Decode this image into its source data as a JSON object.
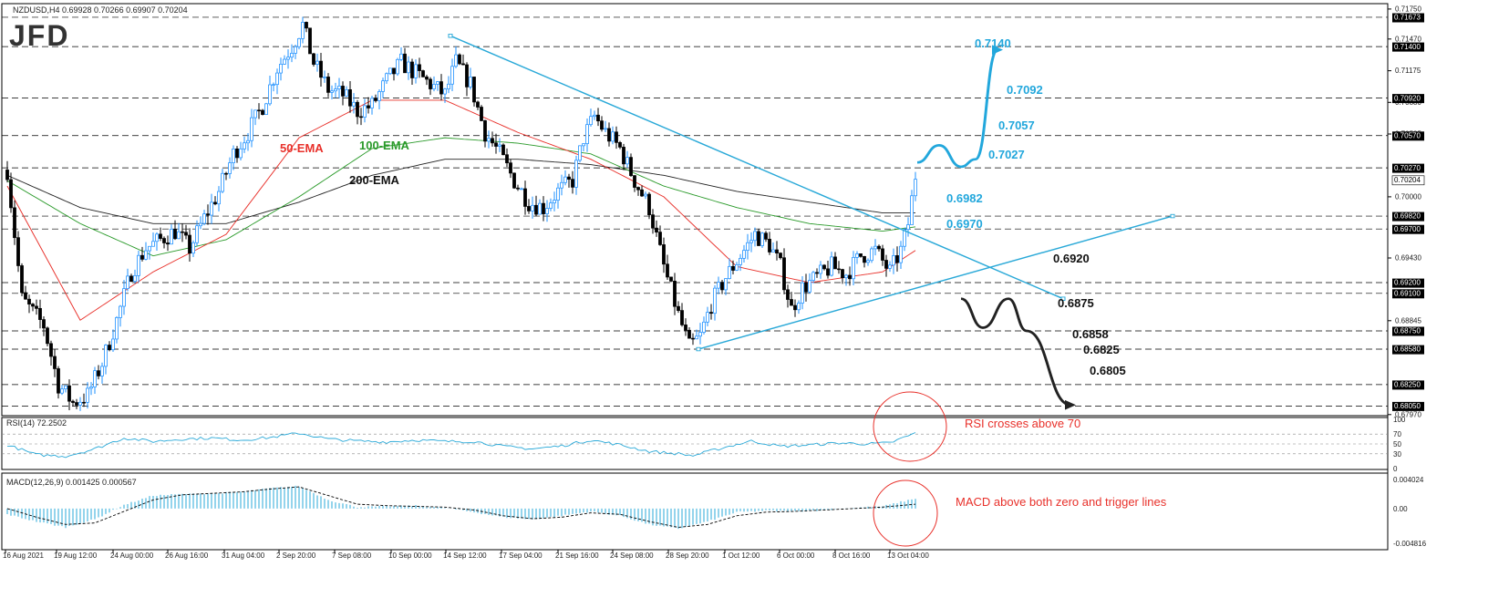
{
  "main": {
    "symbol_label": "NZDUSD,H4  0.69928 0.70266 0.69907 0.70204",
    "logo_text": "JFD",
    "ema_labels": {
      "ema50": "50-EMA",
      "ema100": "100-EMA",
      "ema200": "200-EMA"
    },
    "levels_dashed": [
      0.71673,
      0.714,
      0.7092,
      0.7057,
      0.7027,
      0.6982,
      0.697,
      0.692,
      0.691,
      0.6875,
      0.6858,
      0.6825,
      0.6805
    ],
    "axis_ticks": [
      "0.71750",
      "0.71470",
      "0.71175",
      "0.70880",
      "0.70585",
      "0.70000",
      "0.69430",
      "0.68845",
      "0.67970"
    ],
    "axis_badges": [
      "0.71673",
      "0.71400",
      "0.70920",
      "0.70570",
      "0.70270",
      "0.70204",
      "0.69820",
      "0.69700",
      "0.69200",
      "0.69100",
      "0.68750",
      "0.68580",
      "0.68250",
      "0.68050"
    ],
    "target_labels_up": [
      "0.7140",
      "0.7092",
      "0.7057",
      "0.7027",
      "0.6982",
      "0.6970"
    ],
    "target_labels_down": [
      "0.6920",
      "0.6875",
      "0.6858",
      "0.6825",
      "0.6805"
    ],
    "colors": {
      "up_candle": "#1e90ff",
      "down_candle": "#000000",
      "ema50": "#e8302a",
      "ema100": "#2a9a2a",
      "ema200": "#222222",
      "trendline": "#2aa9d8",
      "annotation": "#e8302a",
      "target_up": "#22a7dc",
      "target_down": "#222222"
    }
  },
  "rsi": {
    "label": "RSI(14) 72.2502",
    "axis_ticks": [
      "100",
      "70",
      "50",
      "30",
      "0"
    ],
    "annotation": "RSI crosses above 70"
  },
  "macd": {
    "label": "MACD(12,26,9) 0.001425 0.000567",
    "axis_ticks": [
      "0.004024",
      "0.00",
      "-0.004816"
    ],
    "annotation": "MACD above both zero and trigger lines"
  },
  "time_axis": [
    "16 Aug 2021",
    "19 Aug 12:00",
    "24 Aug 00:00",
    "26 Aug 16:00",
    "31 Aug 04:00",
    "2 Sep 20:00",
    "7 Sep 08:00",
    "10 Sep 00:00",
    "14 Sep 12:00",
    "17 Sep 04:00",
    "21 Sep 16:00",
    "24 Sep 08:00",
    "28 Sep 20:00",
    "1 Oct 12:00",
    "6 Oct 00:00",
    "8 Oct 16:00",
    "13 Oct 04:00"
  ],
  "chart_data": {
    "type": "candlestick",
    "symbol": "NZDUSD",
    "timeframe": "H4",
    "ohlc_last": {
      "open": 0.69928,
      "high": 0.70266,
      "low": 0.69907,
      "close": 0.70204
    },
    "price_path_anchors": [
      [
        0,
        0.7025
      ],
      [
        4,
        0.6905
      ],
      [
        10,
        0.688
      ],
      [
        14,
        0.6825
      ],
      [
        18,
        0.6808
      ],
      [
        22,
        0.6815
      ],
      [
        26,
        0.6845
      ],
      [
        30,
        0.6885
      ],
      [
        34,
        0.693
      ],
      [
        38,
        0.6952
      ],
      [
        42,
        0.696
      ],
      [
        46,
        0.6968
      ],
      [
        50,
        0.6952
      ],
      [
        54,
        0.698
      ],
      [
        58,
        0.7005
      ],
      [
        62,
        0.704
      ],
      [
        66,
        0.706
      ],
      [
        70,
        0.7085
      ],
      [
        74,
        0.712
      ],
      [
        78,
        0.714
      ],
      [
        81,
        0.716
      ],
      [
        84,
        0.7125
      ],
      [
        88,
        0.71
      ],
      [
        92,
        0.7095
      ],
      [
        96,
        0.708
      ],
      [
        100,
        0.7085
      ],
      [
        104,
        0.7108
      ],
      [
        108,
        0.7125
      ],
      [
        112,
        0.7115
      ],
      [
        116,
        0.7105
      ],
      [
        120,
        0.7095
      ],
      [
        123,
        0.7125
      ],
      [
        127,
        0.7105
      ],
      [
        131,
        0.706
      ],
      [
        135,
        0.704
      ],
      [
        139,
        0.7015
      ],
      [
        143,
        0.6995
      ],
      [
        147,
        0.699
      ],
      [
        151,
        0.7005
      ],
      [
        155,
        0.7015
      ],
      [
        158,
        0.7055
      ],
      [
        161,
        0.7075
      ],
      [
        164,
        0.706
      ],
      [
        168,
        0.7045
      ],
      [
        172,
        0.7015
      ],
      [
        176,
        0.699
      ],
      [
        180,
        0.6935
      ],
      [
        184,
        0.689
      ],
      [
        187,
        0.686
      ],
      [
        190,
        0.687
      ],
      [
        193,
        0.69
      ],
      [
        197,
        0.6925
      ],
      [
        201,
        0.6945
      ],
      [
        205,
        0.6965
      ],
      [
        209,
        0.6955
      ],
      [
        212,
        0.6935
      ],
      [
        215,
        0.6895
      ],
      [
        218,
        0.6915
      ],
      [
        222,
        0.6925
      ],
      [
        226,
        0.6935
      ],
      [
        230,
        0.6928
      ],
      [
        234,
        0.6945
      ],
      [
        238,
        0.695
      ],
      [
        242,
        0.693
      ],
      [
        245,
        0.695
      ],
      [
        247,
        0.6975
      ],
      [
        249,
        0.702
      ]
    ],
    "ema50": [
      [
        0,
        0.701
      ],
      [
        20,
        0.6885
      ],
      [
        40,
        0.693
      ],
      [
        60,
        0.6965
      ],
      [
        80,
        0.7055
      ],
      [
        100,
        0.709
      ],
      [
        120,
        0.709
      ],
      [
        140,
        0.706
      ],
      [
        160,
        0.7035
      ],
      [
        180,
        0.7
      ],
      [
        200,
        0.6935
      ],
      [
        220,
        0.692
      ],
      [
        240,
        0.693
      ],
      [
        249,
        0.695
      ]
    ],
    "ema100": [
      [
        0,
        0.7015
      ],
      [
        20,
        0.6975
      ],
      [
        40,
        0.6945
      ],
      [
        60,
        0.696
      ],
      [
        80,
        0.7
      ],
      [
        100,
        0.7045
      ],
      [
        120,
        0.7055
      ],
      [
        140,
        0.705
      ],
      [
        160,
        0.704
      ],
      [
        180,
        0.701
      ],
      [
        200,
        0.699
      ],
      [
        220,
        0.6975
      ],
      [
        240,
        0.6968
      ],
      [
        249,
        0.6972
      ]
    ],
    "ema200": [
      [
        0,
        0.702
      ],
      [
        20,
        0.699
      ],
      [
        40,
        0.6975
      ],
      [
        60,
        0.6975
      ],
      [
        80,
        0.6995
      ],
      [
        100,
        0.702
      ],
      [
        120,
        0.7035
      ],
      [
        140,
        0.7035
      ],
      [
        160,
        0.703
      ],
      [
        180,
        0.702
      ],
      [
        200,
        0.7005
      ],
      [
        220,
        0.6995
      ],
      [
        240,
        0.6985
      ],
      [
        249,
        0.6985
      ]
    ],
    "trendlines": [
      {
        "from": [
          122,
          0.715
        ],
        "to": [
          290,
          0.6905
        ]
      },
      {
        "from": [
          190,
          0.6858
        ],
        "to": [
          320,
          0.6982
        ]
      }
    ],
    "projection_up": [
      [
        250,
        0.7032
      ],
      [
        256,
        0.7048
      ],
      [
        262,
        0.7028
      ],
      [
        266,
        0.7035
      ],
      [
        272,
        0.7137
      ]
    ],
    "projection_down": [
      [
        262,
        0.6905
      ],
      [
        268,
        0.6878
      ],
      [
        275,
        0.6905
      ],
      [
        280,
        0.6875
      ],
      [
        292,
        0.6806
      ]
    ],
    "rsi": {
      "series": [
        [
          0,
          48
        ],
        [
          8,
          28
        ],
        [
          16,
          25
        ],
        [
          24,
          40
        ],
        [
          32,
          62
        ],
        [
          40,
          55
        ],
        [
          48,
          60
        ],
        [
          56,
          62
        ],
        [
          64,
          58
        ],
        [
          72,
          63
        ],
        [
          80,
          72
        ],
        [
          88,
          60
        ],
        [
          96,
          56
        ],
        [
          104,
          54
        ],
        [
          112,
          58
        ],
        [
          120,
          55
        ],
        [
          128,
          55
        ],
        [
          136,
          45
        ],
        [
          144,
          40
        ],
        [
          152,
          46
        ],
        [
          160,
          58
        ],
        [
          168,
          48
        ],
        [
          176,
          35
        ],
        [
          184,
          30
        ],
        [
          188,
          26
        ],
        [
          196,
          42
        ],
        [
          204,
          56
        ],
        [
          212,
          45
        ],
        [
          220,
          48
        ],
        [
          228,
          52
        ],
        [
          236,
          50
        ],
        [
          242,
          52
        ],
        [
          249,
          72
        ]
      ],
      "levels": [
        70,
        50,
        30
      ],
      "range": [
        0,
        100
      ]
    },
    "macd": {
      "histogram": [
        [
          0,
          -0.0008
        ],
        [
          8,
          -0.0018
        ],
        [
          16,
          -0.0026
        ],
        [
          24,
          -0.0015
        ],
        [
          32,
          0.0005
        ],
        [
          40,
          0.0018
        ],
        [
          48,
          0.002
        ],
        [
          56,
          0.0021
        ],
        [
          64,
          0.0023
        ],
        [
          72,
          0.0028
        ],
        [
          80,
          0.0031
        ],
        [
          88,
          0.0012
        ],
        [
          96,
          0.0002
        ],
        [
          104,
          0.0003
        ],
        [
          112,
          0.0004
        ],
        [
          120,
          0.0001
        ],
        [
          128,
          -0.0005
        ],
        [
          136,
          -0.0012
        ],
        [
          144,
          -0.0015
        ],
        [
          152,
          -0.001
        ],
        [
          160,
          -0.0004
        ],
        [
          168,
          -0.001
        ],
        [
          176,
          -0.0022
        ],
        [
          184,
          -0.0028
        ],
        [
          192,
          -0.0018
        ],
        [
          200,
          -0.0005
        ],
        [
          208,
          -0.0003
        ],
        [
          216,
          -0.0004
        ],
        [
          224,
          -0.0002
        ],
        [
          232,
          0.0001
        ],
        [
          240,
          0.0003
        ],
        [
          249,
          0.0014
        ]
      ],
      "signal": [
        [
          0,
          0.0
        ],
        [
          8,
          -0.0012
        ],
        [
          16,
          -0.0022
        ],
        [
          24,
          -0.002
        ],
        [
          32,
          -0.0004
        ],
        [
          40,
          0.0012
        ],
        [
          48,
          0.0019
        ],
        [
          56,
          0.0021
        ],
        [
          64,
          0.0023
        ],
        [
          72,
          0.0027
        ],
        [
          80,
          0.003
        ],
        [
          88,
          0.0018
        ],
        [
          96,
          0.0006
        ],
        [
          104,
          0.0004
        ],
        [
          112,
          0.0003
        ],
        [
          120,
          0.0002
        ],
        [
          128,
          -0.0002
        ],
        [
          136,
          -0.001
        ],
        [
          144,
          -0.0014
        ],
        [
          152,
          -0.0012
        ],
        [
          160,
          -0.0006
        ],
        [
          168,
          -0.0008
        ],
        [
          176,
          -0.0018
        ],
        [
          184,
          -0.0026
        ],
        [
          192,
          -0.0022
        ],
        [
          200,
          -0.001
        ],
        [
          208,
          -0.0005
        ],
        [
          216,
          -0.0004
        ],
        [
          224,
          -0.0002
        ],
        [
          232,
          0.0
        ],
        [
          240,
          0.0002
        ],
        [
          249,
          0.0006
        ]
      ],
      "range": [
        -0.004816,
        0.004024
      ]
    }
  }
}
